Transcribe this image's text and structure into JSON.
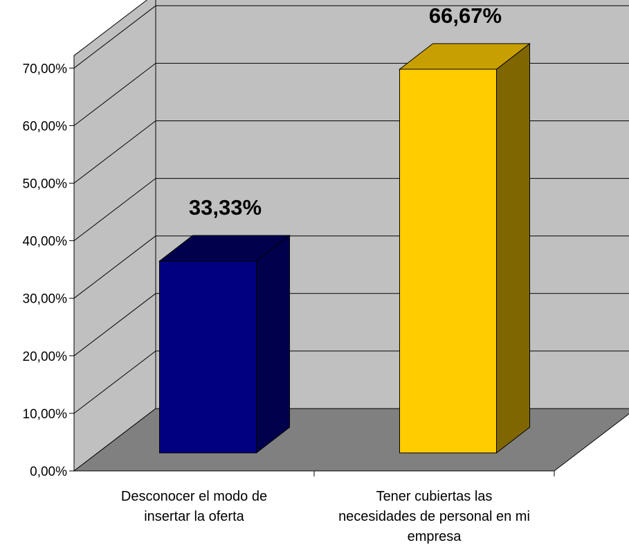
{
  "chart_data": {
    "type": "bar",
    "title": "",
    "xlabel": "",
    "ylabel": "",
    "categories": [
      [
        "Desconocer el modo de",
        "insertar la oferta"
      ],
      [
        "Tener cubiertas las",
        "necesidades de personal en mi",
        "empresa"
      ]
    ],
    "series": [
      {
        "values": [
          33.33,
          66.67
        ]
      }
    ],
    "data_labels": [
      "33,33%",
      "66,67%"
    ],
    "y_ticks": [
      "0,00%",
      "10,00%",
      "20,00%",
      "30,00%",
      "40,00%",
      "50,00%",
      "60,00%",
      "70,00%"
    ],
    "ylim": [
      0,
      70
    ],
    "grid": true,
    "legend": "none",
    "style": "3d-column",
    "bar_colors": [
      {
        "front": "#000080",
        "top": "#00004d",
        "side": "#00004d"
      },
      {
        "front": "#ffcc00",
        "top": "#c89f00",
        "side": "#806600"
      }
    ],
    "wall_color": "#c0c0c0",
    "floor_color": "#808080"
  }
}
